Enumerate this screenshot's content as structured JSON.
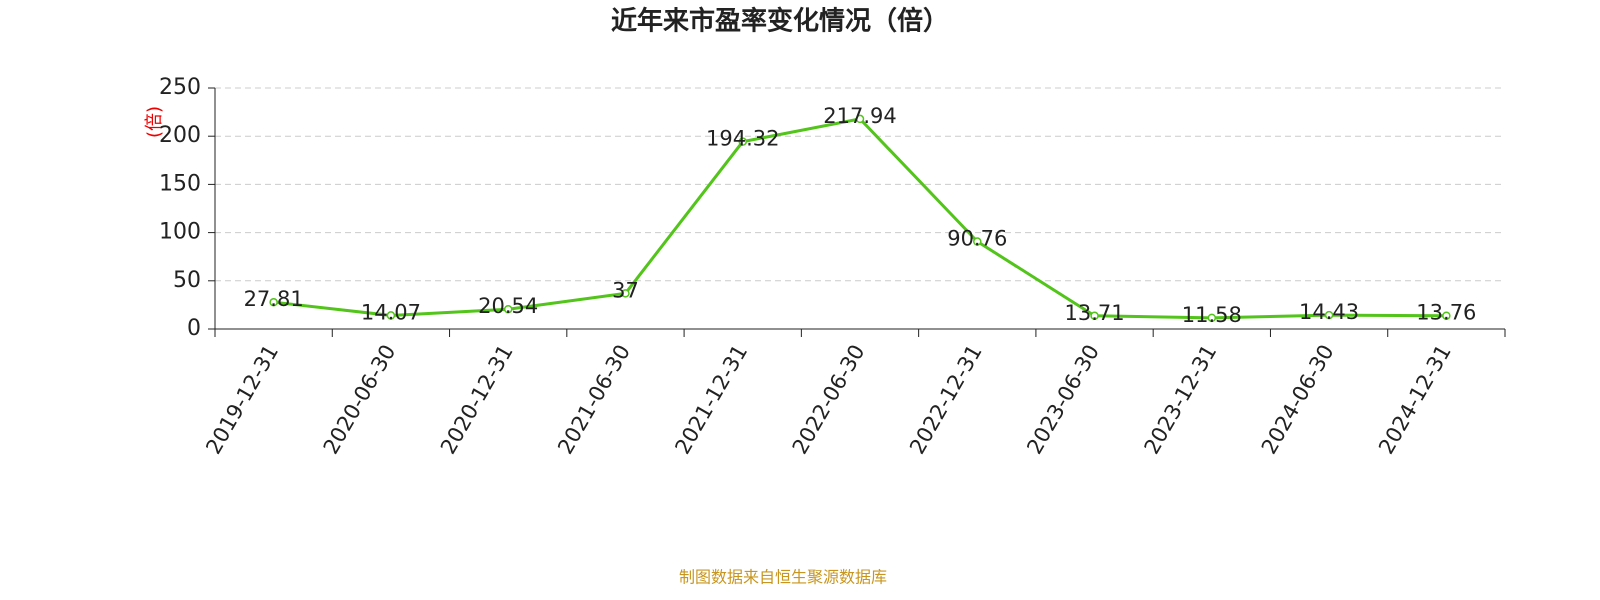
{
  "chart_data": {
    "type": "line",
    "title": "近年来市盈率变化情况（倍）",
    "y_label": "(倍)",
    "categories": [
      "2019-12-31",
      "2020-06-30",
      "2020-12-31",
      "2021-06-30",
      "2021-12-31",
      "2022-06-30",
      "2022-12-31",
      "2023-06-30",
      "2023-12-31",
      "2024-06-30",
      "2024-12-31"
    ],
    "values": [
      27.81,
      14.07,
      20.54,
      37,
      194.32,
      217.94,
      90.76,
      13.71,
      11.58,
      14.43,
      13.76
    ],
    "color": "#52c41a",
    "ylim": [
      0,
      250
    ],
    "yticks": [
      0,
      50,
      100,
      150,
      200,
      250
    ],
    "grid": true,
    "source": "制图数据来自恒生聚源数据库"
  }
}
